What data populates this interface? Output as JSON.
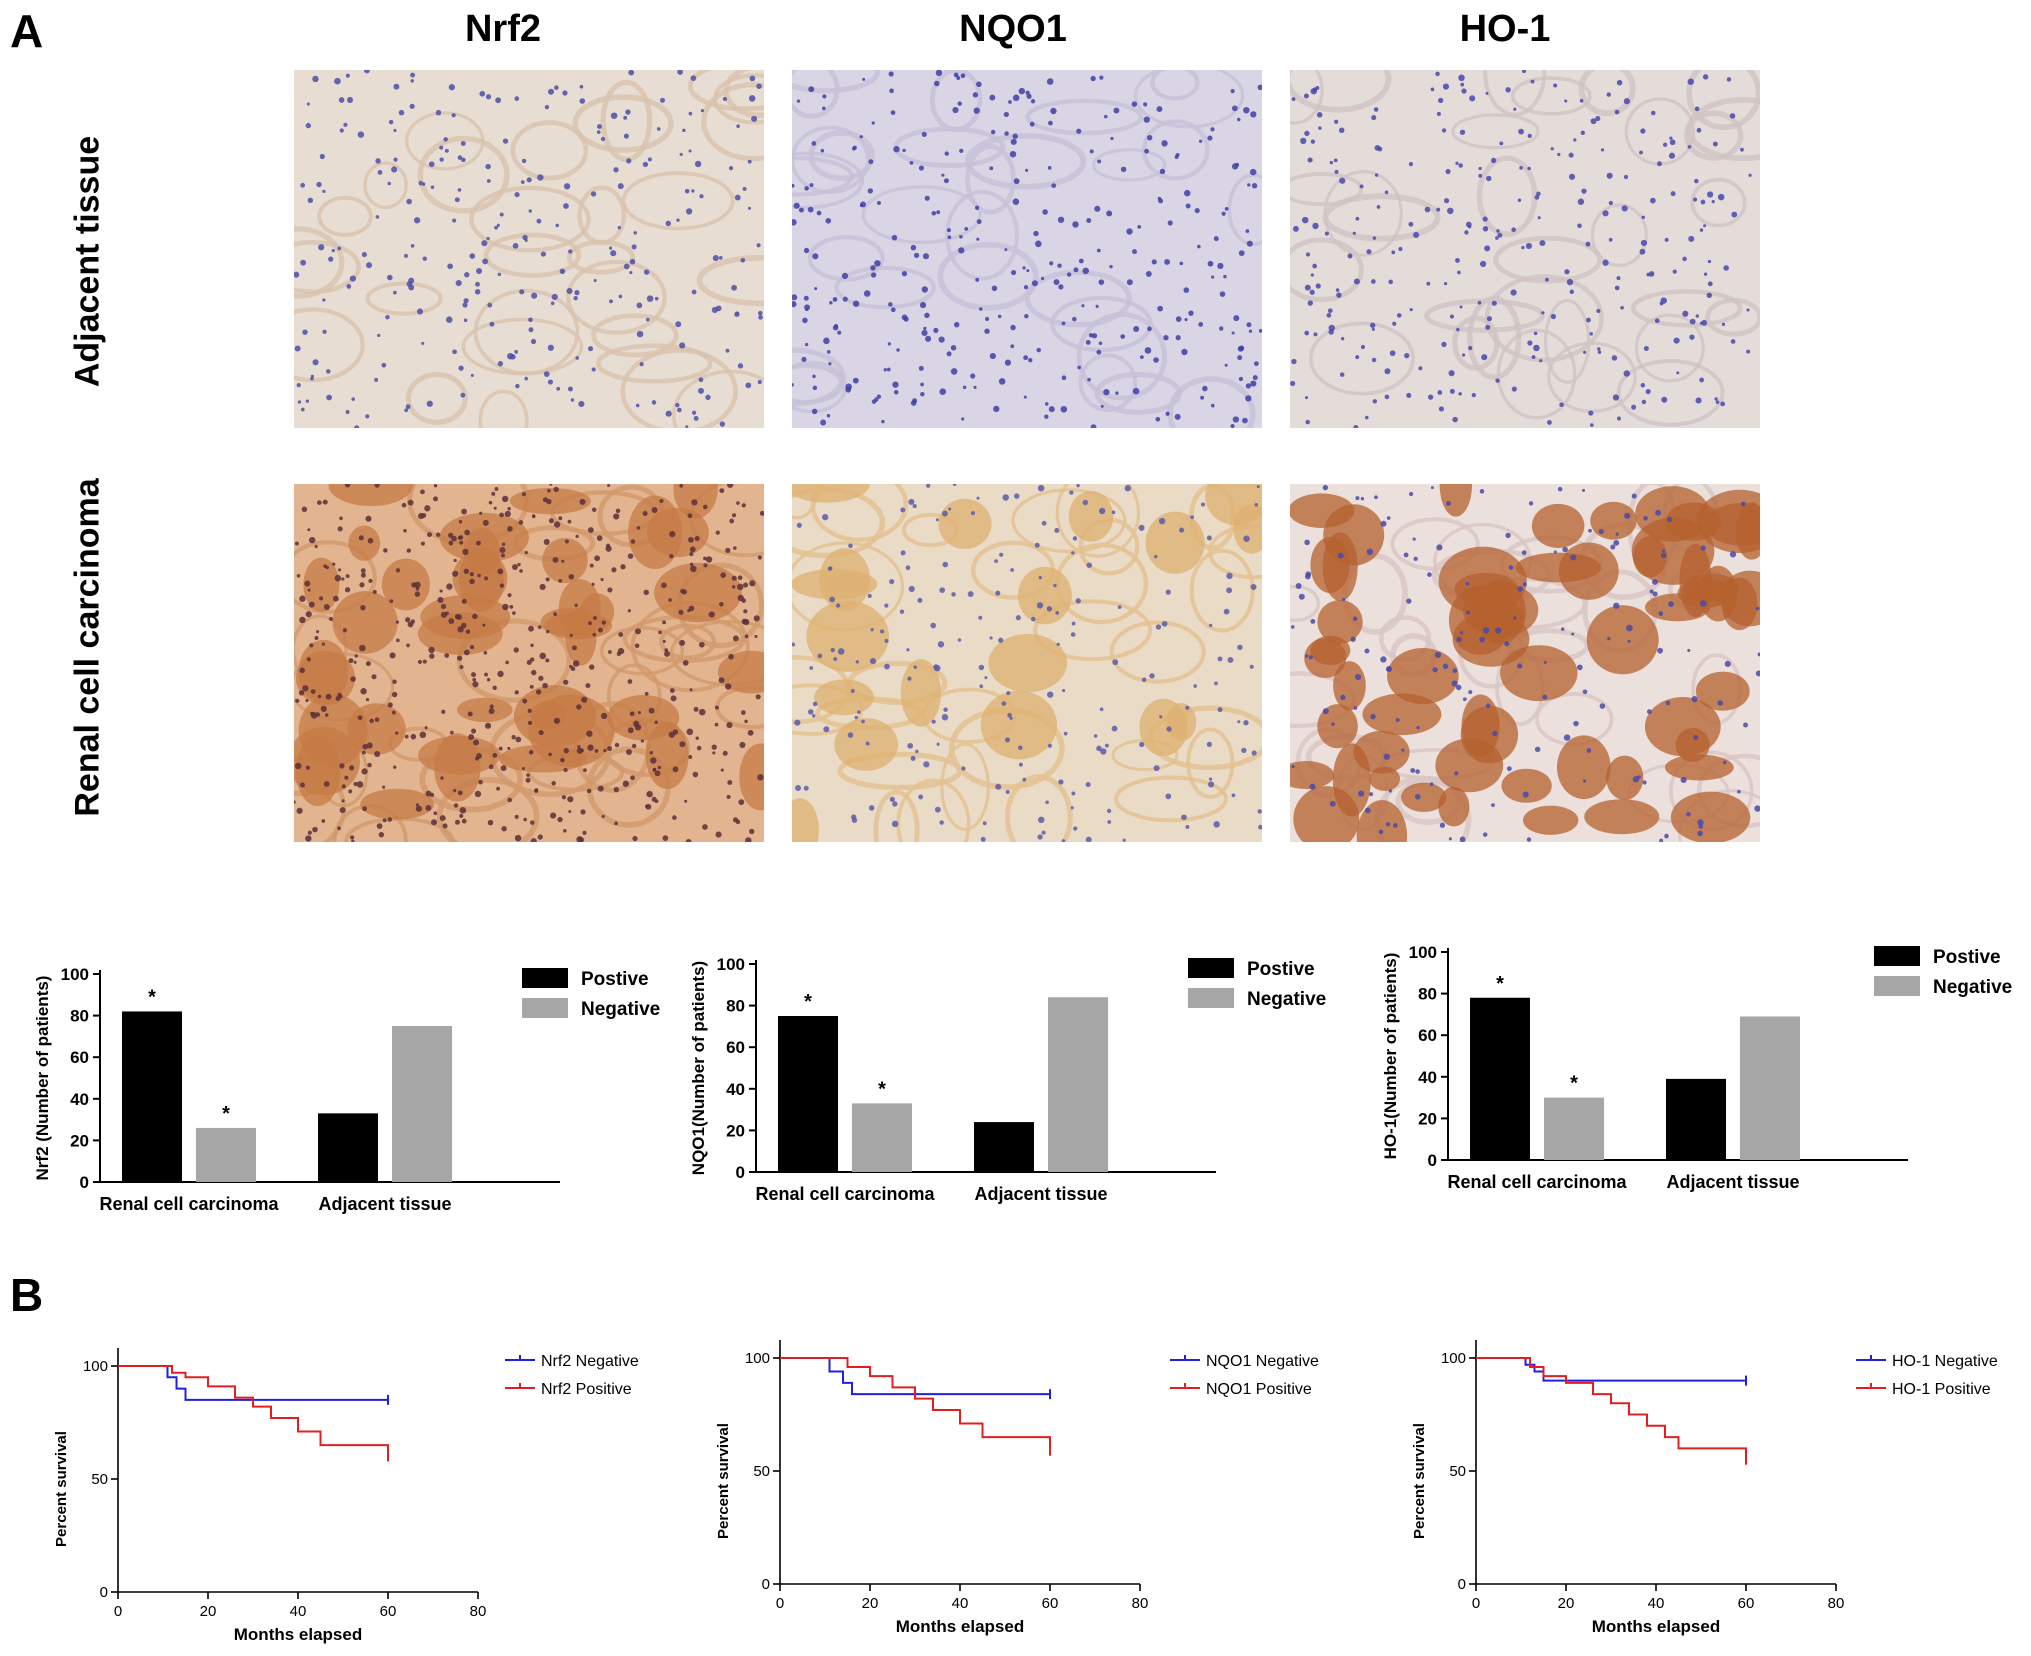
{
  "panel_labels": {
    "a": "A",
    "b": "B"
  },
  "columns": [
    "Nrf2",
    "NQO1",
    "HO-1"
  ],
  "rows": [
    "Adjacent tissue",
    "Renal cell carcinoma"
  ],
  "micrographs": [
    {
      "name": "nrf2-adjacent",
      "bg": "#e8ddd2",
      "tint": "#d8c3ae",
      "nuc": "#4c4fa8",
      "density": 260,
      "blobs": 0,
      "blobColor": "#c98a55"
    },
    {
      "name": "nqo1-adjacent",
      "bg": "#d9d5e4",
      "tint": "#c7c0d8",
      "nuc": "#3f3fa5",
      "density": 320,
      "blobs": 0,
      "blobColor": "#c98a55"
    },
    {
      "name": "ho1-adjacent",
      "bg": "#e4dcd8",
      "tint": "#d1c3c4",
      "nuc": "#4848ad",
      "density": 280,
      "blobs": 0,
      "blobColor": "#c98a55"
    },
    {
      "name": "nrf2-carcinoma",
      "bg": "#e2b48f",
      "tint": "#d29a6c",
      "nuc": "#5a2f3a",
      "density": 520,
      "blobs": 40,
      "blobColor": "#c57b45"
    },
    {
      "name": "nqo1-carcinoma",
      "bg": "#eadbc7",
      "tint": "#e3c08e",
      "nuc": "#5b5aa8",
      "density": 200,
      "blobs": 18,
      "blobColor": "#ddb070"
    },
    {
      "name": "ho1-carcinoma",
      "bg": "#ece0dc",
      "tint": "#d9c6c4",
      "nuc": "#4a4aa8",
      "density": 160,
      "blobs": 60,
      "blobColor": "#b5612f"
    }
  ],
  "colors": {
    "positive": "#000000",
    "negative": "#a6a6a6",
    "km_negative": "#2020e0",
    "km_positive": "#e02020"
  },
  "chart_data": [
    {
      "type": "bar",
      "categories": [
        "Renal cell carcinoma",
        "Adjacent tissue"
      ],
      "series": [
        {
          "name": "Postive",
          "values": [
            82,
            33
          ]
        },
        {
          "name": "Negative",
          "values": [
            26,
            75
          ]
        }
      ],
      "significance": [
        [
          "*",
          ""
        ],
        [
          "*",
          ""
        ]
      ],
      "ylabel": "Nrf2  (Number of patients)",
      "ylim": [
        0,
        100
      ],
      "yticks": [
        0,
        20,
        40,
        60,
        80,
        100
      ],
      "legend": "right"
    },
    {
      "type": "bar",
      "categories": [
        "Renal cell carcinoma",
        "Adjacent tissue"
      ],
      "series": [
        {
          "name": "Postive",
          "values": [
            75,
            24
          ]
        },
        {
          "name": "Negative",
          "values": [
            33,
            84
          ]
        }
      ],
      "significance": [
        [
          "*",
          ""
        ],
        [
          "*",
          ""
        ]
      ],
      "ylabel": "NQO1(Number of patients)",
      "ylim": [
        0,
        100
      ],
      "yticks": [
        0,
        20,
        40,
        60,
        80,
        100
      ],
      "legend": "right"
    },
    {
      "type": "bar",
      "categories": [
        "Renal cell carcinoma",
        "Adjacent tissue"
      ],
      "series": [
        {
          "name": "Postive",
          "values": [
            78,
            39
          ]
        },
        {
          "name": "Negative",
          "values": [
            30,
            69
          ]
        }
      ],
      "significance": [
        [
          "*",
          ""
        ],
        [
          "*",
          ""
        ]
      ],
      "ylabel": "HO-1(Number of patients)",
      "ylim": [
        0,
        100
      ],
      "yticks": [
        0,
        20,
        40,
        60,
        80,
        100
      ],
      "legend": "right"
    },
    {
      "type": "line",
      "subtype": "kaplan-meier",
      "xlabel": "Months elapsed",
      "ylabel": "Percent survival",
      "xlim": [
        0,
        80
      ],
      "ylim": [
        0,
        100
      ],
      "xticks": [
        0,
        20,
        40,
        60,
        80
      ],
      "yticks": [
        0,
        50,
        100
      ],
      "legend": "right",
      "series": [
        {
          "name": "Nrf2 Negative",
          "color": "#2020e0",
          "x": [
            0,
            10,
            11,
            13,
            15,
            60
          ],
          "y": [
            100,
            100,
            95,
            90,
            85,
            85
          ]
        },
        {
          "name": "Nrf2 Positive",
          "color": "#e02020",
          "x": [
            0,
            9,
            12,
            15,
            20,
            26,
            30,
            34,
            40,
            45,
            60
          ],
          "y": [
            100,
            100,
            97,
            95,
            91,
            86,
            82,
            77,
            71,
            65,
            60
          ]
        }
      ]
    },
    {
      "type": "line",
      "subtype": "kaplan-meier",
      "xlabel": "Months elapsed",
      "ylabel": "Percent survival",
      "xlim": [
        0,
        80
      ],
      "ylim": [
        0,
        100
      ],
      "xticks": [
        0,
        20,
        40,
        60,
        80
      ],
      "yticks": [
        0,
        50,
        100
      ],
      "legend": "right",
      "series": [
        {
          "name": "NQO1 Negative",
          "color": "#2020e0",
          "x": [
            0,
            9,
            11,
            14,
            16,
            60
          ],
          "y": [
            100,
            100,
            94,
            89,
            84,
            84
          ]
        },
        {
          "name": "NQO1 Positive",
          "color": "#e02020",
          "x": [
            0,
            10,
            15,
            20,
            25,
            30,
            34,
            40,
            45,
            60
          ],
          "y": [
            100,
            100,
            96,
            92,
            87,
            82,
            77,
            71,
            65,
            59
          ]
        }
      ]
    },
    {
      "type": "line",
      "subtype": "kaplan-meier",
      "xlabel": "Months elapsed",
      "ylabel": "Percent survival",
      "xlim": [
        0,
        80
      ],
      "ylim": [
        0,
        100
      ],
      "xticks": [
        0,
        20,
        40,
        60,
        80
      ],
      "yticks": [
        0,
        50,
        100
      ],
      "legend": "right",
      "series": [
        {
          "name": "HO-1 Negative",
          "color": "#2020e0",
          "x": [
            0,
            9,
            11,
            13,
            15,
            60
          ],
          "y": [
            100,
            100,
            97,
            94,
            90,
            90
          ]
        },
        {
          "name": "HO-1 Positive",
          "color": "#e02020",
          "x": [
            0,
            10,
            12,
            15,
            20,
            26,
            30,
            34,
            38,
            42,
            45,
            60
          ],
          "y": [
            100,
            100,
            96,
            92,
            89,
            84,
            80,
            75,
            70,
            65,
            60,
            55
          ]
        }
      ]
    }
  ]
}
